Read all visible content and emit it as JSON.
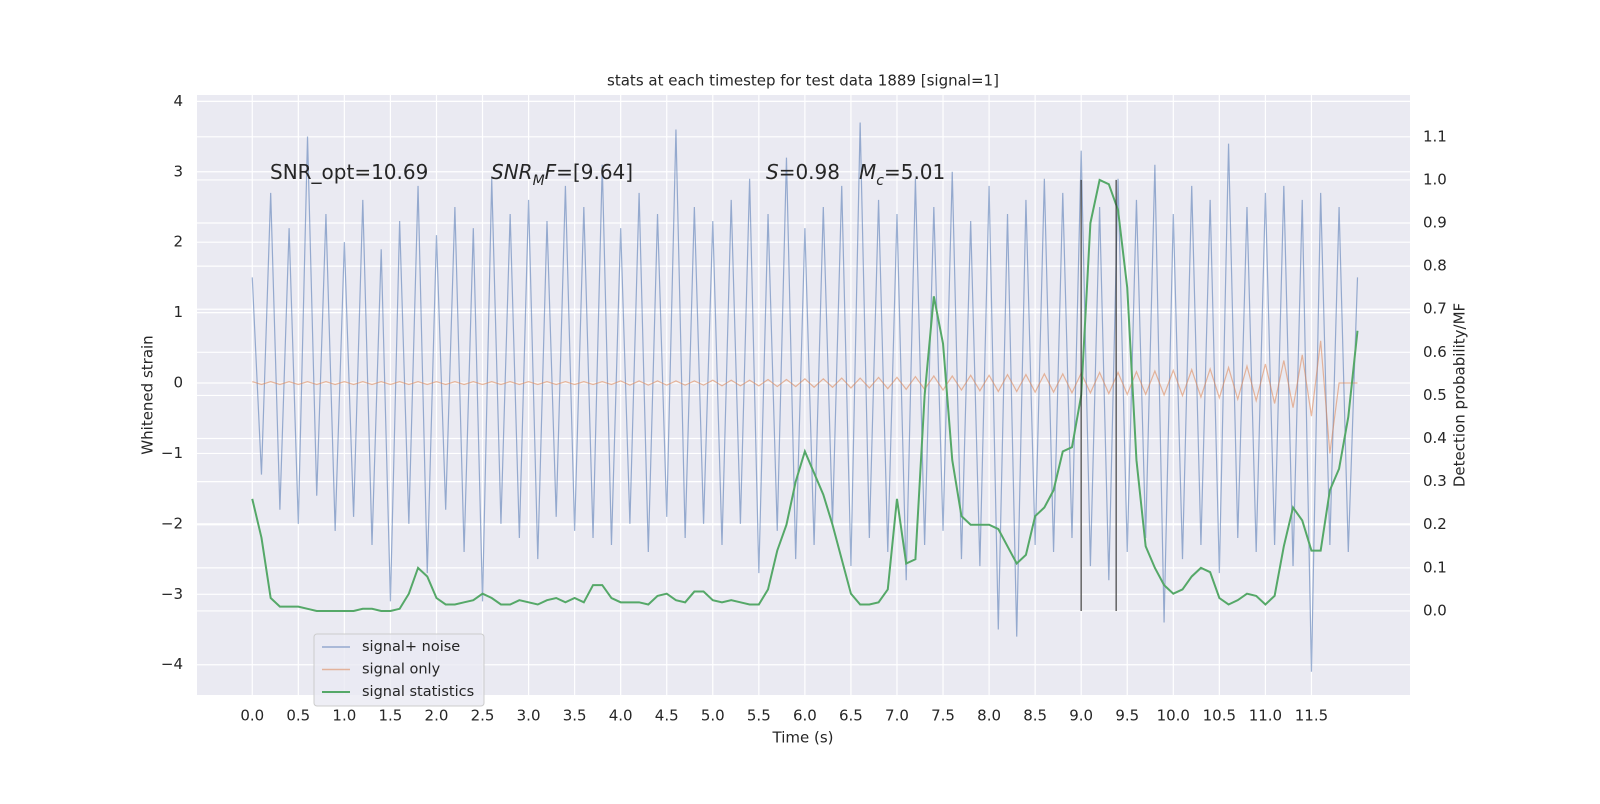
{
  "chart_data": {
    "type": "line",
    "title": "stats at each timestep for test data 1889 [signal=1]",
    "xlabel": "Time (s)",
    "ylabel": "Whitened strain",
    "y2label": "Detection probability/MF",
    "legend": "lower left",
    "grid": true,
    "xlim": [
      -0.6,
      12.57
    ],
    "ylim": [
      -4.43,
      4.09
    ],
    "y2lim": [
      -0.195,
      1.197
    ],
    "xticks": [
      {
        "value": 0,
        "label": "0.0"
      },
      0.5,
      {
        "value": 1,
        "label": "1.0"
      },
      1.5,
      {
        "value": 2,
        "label": "2.0"
      },
      2.5,
      {
        "value": 3,
        "label": "3.0"
      },
      3.5,
      {
        "value": 4,
        "label": "4.0"
      },
      4.5,
      {
        "value": 5,
        "label": "5.0"
      },
      5.5,
      {
        "value": 6,
        "label": "6.0"
      },
      6.5,
      {
        "value": 7,
        "label": "7.0"
      },
      7.5,
      {
        "value": 8,
        "label": "8.0"
      },
      8.5,
      {
        "value": 9,
        "label": "9.0"
      },
      9.5,
      {
        "value": 10,
        "label": "10.0"
      },
      10.5,
      {
        "value": 11,
        "label": "11.0"
      },
      11.5
    ],
    "yticks": [
      {
        "value": -4,
        "label": "−4"
      },
      {
        "value": -3,
        "label": "−3"
      },
      {
        "value": -2,
        "label": "−2"
      },
      {
        "value": -1,
        "label": "−1"
      },
      0,
      1,
      2,
      3,
      4
    ],
    "y2ticks": [
      {
        "value": 0,
        "label": "0.0"
      },
      0.1,
      0.2,
      0.3,
      0.4,
      0.5,
      0.6,
      0.7,
      0.8,
      0.9,
      {
        "value": 1,
        "label": "1.0"
      },
      1.1
    ],
    "x": [
      0,
      0.1,
      0.2,
      0.3,
      0.4,
      0.5,
      0.6,
      0.7,
      0.8,
      0.9,
      1,
      1.1,
      1.2,
      1.3,
      1.4,
      1.5,
      1.6,
      1.7,
      1.8,
      1.9,
      2,
      2.1,
      2.2,
      2.3,
      2.4,
      2.5,
      2.6,
      2.7,
      2.8,
      2.9,
      3,
      3.1,
      3.2,
      3.3,
      3.4,
      3.5,
      3.6,
      3.7,
      3.8,
      3.9,
      4,
      4.1,
      4.2,
      4.3,
      4.4,
      4.5,
      4.6,
      4.7,
      4.8,
      4.9,
      5,
      5.1,
      5.2,
      5.3,
      5.4,
      5.5,
      5.6,
      5.7,
      5.8,
      5.9,
      6,
      6.1,
      6.2,
      6.3,
      6.4,
      6.5,
      6.6,
      6.7,
      6.8,
      6.9,
      7,
      7.1,
      7.2,
      7.3,
      7.4,
      7.5,
      7.6,
      7.7,
      7.8,
      7.9,
      8,
      8.1,
      8.2,
      8.3,
      8.4,
      8.5,
      8.6,
      8.7,
      8.8,
      8.9,
      9,
      9.1,
      9.2,
      9.3,
      9.4,
      9.5,
      9.6,
      9.7,
      9.8,
      9.9,
      10,
      10.1,
      10.2,
      10.3,
      10.4,
      10.5,
      10.6,
      10.7,
      10.8,
      10.9,
      11,
      11.1,
      11.2,
      11.3,
      11.4,
      11.5,
      11.6,
      11.7,
      11.8,
      11.9,
      12
    ],
    "series": [
      {
        "name": "signal+ noise",
        "color": "#4c72b0",
        "values": [
          1.5,
          -1.3,
          2.7,
          -1.8,
          2.2,
          -2.0,
          3.5,
          -1.6,
          2.4,
          -2.1,
          2.0,
          -1.9,
          2.6,
          -2.3,
          1.9,
          -3.1,
          2.3,
          -2.0,
          2.8,
          -2.7,
          2.1,
          -1.8,
          2.5,
          -2.4,
          2.2,
          -3.1,
          2.9,
          -2.0,
          2.4,
          -2.2,
          2.6,
          -2.5,
          2.3,
          -1.9,
          2.8,
          -2.1,
          2.5,
          -2.2,
          3.1,
          -2.3,
          2.2,
          -2.0,
          2.7,
          -2.4,
          2.4,
          -1.9,
          3.6,
          -2.2,
          2.5,
          -2.0,
          2.3,
          -2.3,
          2.6,
          -2.0,
          2.9,
          -2.7,
          2.4,
          -2.1,
          3.2,
          -2.5,
          2.2,
          -2.3,
          2.5,
          -2.0,
          2.8,
          -2.6,
          3.7,
          -2.2,
          2.6,
          -2.4,
          2.4,
          -2.8,
          2.9,
          -2.3,
          2.5,
          -2.1,
          3.0,
          -2.5,
          2.3,
          -2.6,
          2.8,
          -3.5,
          2.4,
          -3.6,
          2.6,
          -2.3,
          2.9,
          -2.4,
          2.7,
          -2.2,
          3.3,
          -2.6,
          2.5,
          -2.8,
          2.9,
          -2.4,
          2.6,
          -2.2,
          3.1,
          -3.4,
          2.4,
          -2.5,
          2.8,
          -2.3,
          2.6,
          -2.7,
          3.4,
          -2.2,
          2.5,
          -2.4,
          2.7,
          -2.3,
          2.8,
          -2.6,
          2.6,
          -4.1,
          2.7,
          -2.3,
          2.5,
          -2.4,
          1.5
        ]
      },
      {
        "name": "signal only",
        "color": "#dd8452",
        "values": [
          0.02,
          -0.02,
          0.02,
          -0.02,
          0.02,
          -0.02,
          0.02,
          -0.02,
          0.02,
          -0.02,
          0.02,
          -0.02,
          0.02,
          -0.02,
          0.02,
          -0.02,
          0.02,
          -0.02,
          0.02,
          -0.02,
          0.02,
          -0.02,
          0.02,
          -0.02,
          0.02,
          -0.02,
          0.02,
          -0.02,
          0.02,
          -0.02,
          0.02,
          -0.02,
          0.02,
          -0.02,
          0.02,
          -0.02,
          0.02,
          -0.02,
          0.02,
          -0.02,
          0.03,
          -0.03,
          0.03,
          -0.03,
          0.03,
          -0.03,
          0.03,
          -0.03,
          0.03,
          -0.03,
          0.04,
          -0.04,
          0.04,
          -0.04,
          0.04,
          -0.04,
          0.05,
          -0.05,
          0.05,
          -0.05,
          0.06,
          -0.06,
          0.06,
          -0.06,
          0.07,
          -0.07,
          0.07,
          -0.07,
          0.08,
          -0.08,
          0.08,
          -0.09,
          0.09,
          -0.09,
          0.1,
          -0.1,
          0.1,
          -0.1,
          0.11,
          -0.11,
          0.11,
          -0.12,
          0.12,
          -0.12,
          0.12,
          -0.13,
          0.13,
          -0.13,
          0.13,
          -0.14,
          0.14,
          -0.14,
          0.15,
          -0.15,
          0.15,
          -0.16,
          0.16,
          -0.16,
          0.17,
          -0.17,
          0.18,
          -0.18,
          0.19,
          -0.2,
          0.2,
          -0.21,
          0.22,
          -0.23,
          0.24,
          -0.25,
          0.27,
          -0.29,
          0.32,
          -0.35,
          0.4,
          -0.47,
          0.6,
          -1.0,
          0,
          0,
          0
        ]
      },
      {
        "name": "signal statistics",
        "color": "#55a868",
        "axis": "y2",
        "values": [
          0.26,
          0.17,
          0.03,
          0.01,
          0.01,
          0.01,
          0.005,
          0.0,
          0.0,
          0.0,
          0.0,
          0.0,
          0.005,
          0.005,
          0.0,
          0.0,
          0.005,
          0.04,
          0.1,
          0.08,
          0.03,
          0.015,
          0.015,
          0.02,
          0.025,
          0.04,
          0.03,
          0.015,
          0.015,
          0.025,
          0.02,
          0.015,
          0.025,
          0.03,
          0.02,
          0.03,
          0.02,
          0.06,
          0.06,
          0.03,
          0.02,
          0.02,
          0.02,
          0.015,
          0.035,
          0.04,
          0.025,
          0.02,
          0.045,
          0.045,
          0.025,
          0.02,
          0.025,
          0.02,
          0.015,
          0.015,
          0.05,
          0.14,
          0.2,
          0.3,
          0.37,
          0.32,
          0.27,
          0.2,
          0.12,
          0.04,
          0.015,
          0.015,
          0.02,
          0.05,
          0.26,
          0.11,
          0.12,
          0.5,
          0.73,
          0.62,
          0.35,
          0.22,
          0.2,
          0.2,
          0.2,
          0.19,
          0.15,
          0.11,
          0.13,
          0.22,
          0.24,
          0.28,
          0.37,
          0.38,
          0.5,
          0.9,
          1.0,
          0.99,
          0.93,
          0.75,
          0.35,
          0.15,
          0.1,
          0.06,
          0.04,
          0.05,
          0.08,
          0.1,
          0.09,
          0.03,
          0.015,
          0.025,
          0.04,
          0.035,
          0.015,
          0.035,
          0.15,
          0.24,
          0.21,
          0.14,
          0.14,
          0.28,
          0.33,
          0.45,
          0.65
        ]
      }
    ],
    "vlines": [
      {
        "x": 9.0,
        "ymin": 0,
        "ymax": 1.0,
        "color": "#333333"
      },
      {
        "x": 9.38,
        "ymin": 0,
        "ymax": 1.0,
        "color": "#333333"
      }
    ],
    "annotations": [
      {
        "parts": [
          {
            "text": "SNR_opt=10.69"
          }
        ]
      },
      {
        "parts": [
          {
            "text": "SNR",
            "style": "italic"
          },
          {
            "text": "M",
            "style": "sub"
          },
          {
            "text": "F",
            "style": "italic"
          },
          {
            "text": "=[9.64]"
          }
        ]
      },
      {
        "parts": [
          {
            "text": "S",
            "style": "italic"
          },
          {
            "text": "=0.98"
          }
        ]
      },
      {
        "parts": [
          {
            "text": "M",
            "style": "italic"
          },
          {
            "text": "c",
            "style": "sub"
          },
          {
            "text": "=5.01"
          }
        ]
      }
    ]
  }
}
